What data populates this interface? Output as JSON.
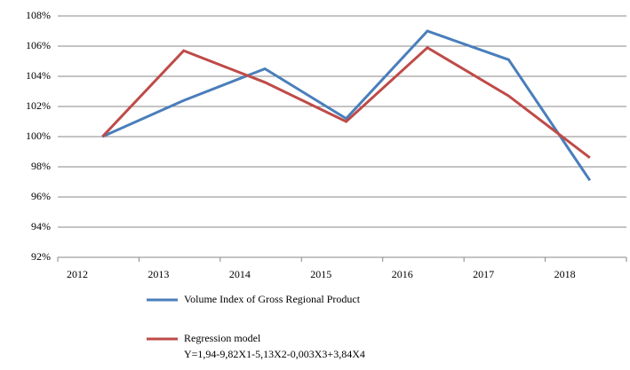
{
  "chart_data": {
    "type": "line",
    "categories": [
      "2012",
      "2013",
      "2014",
      "2015",
      "2016",
      "2017",
      "2018"
    ],
    "series": [
      {
        "name": "Volume Index of Gross Regional Product",
        "color": "#4a7ebb",
        "values": [
          100,
          102.4,
          104.5,
          101.2,
          107.0,
          105.1,
          97.1
        ]
      },
      {
        "name": "Regression model",
        "color": "#be4b48",
        "values": [
          100,
          105.7,
          103.6,
          101.0,
          105.9,
          102.7,
          98.6
        ]
      }
    ],
    "annotations": [
      "Y=1,94-9,82X1-5,13X2-0,003X3+3,84X4"
    ],
    "ylim": [
      92,
      108
    ],
    "yticks": [
      {
        "value": 92,
        "label": "92%"
      },
      {
        "value": 94,
        "label": "94%"
      },
      {
        "value": 96,
        "label": "96%"
      },
      {
        "value": 98,
        "label": "98%"
      },
      {
        "value": 100,
        "label": "100%"
      },
      {
        "value": 102,
        "label": "102%"
      },
      {
        "value": 104,
        "label": "104%"
      },
      {
        "value": 106,
        "label": "106%"
      },
      {
        "value": 108,
        "label": "108%"
      }
    ],
    "grid": true
  }
}
